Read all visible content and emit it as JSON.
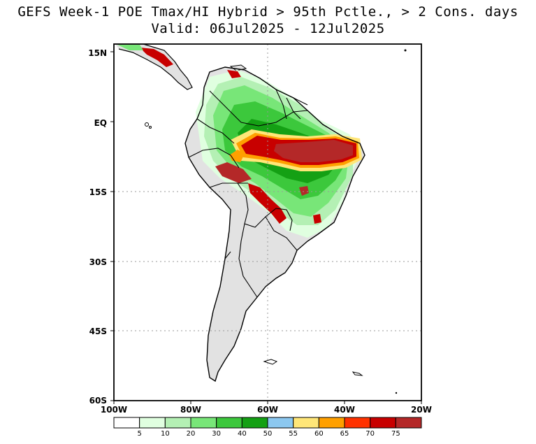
{
  "title": {
    "line1": "GEFS Week-1 POE Tmax/HI Hybrid > 95th Pctle., > 2 Cons. days",
    "line2": "Valid: 06Jul2025 - 12Jul2025"
  },
  "map": {
    "lat_labels": [
      "15N",
      "EQ",
      "15S",
      "30S",
      "45S",
      "60S"
    ],
    "lon_labels": [
      "100W",
      "80W",
      "60W",
      "40W",
      "20W"
    ]
  },
  "colorbar": {
    "colors": [
      "#ffffff",
      "#e0ffe0",
      "#b4f0b4",
      "#78e678",
      "#3cc83c",
      "#14a014",
      "#8cc8f0",
      "#ffe678",
      "#ffa000",
      "#ff3200",
      "#c80000",
      "#b42828"
    ],
    "labels": [
      "5",
      "10",
      "20",
      "30",
      "40",
      "50",
      "55",
      "60",
      "65",
      "70",
      "75"
    ]
  }
}
